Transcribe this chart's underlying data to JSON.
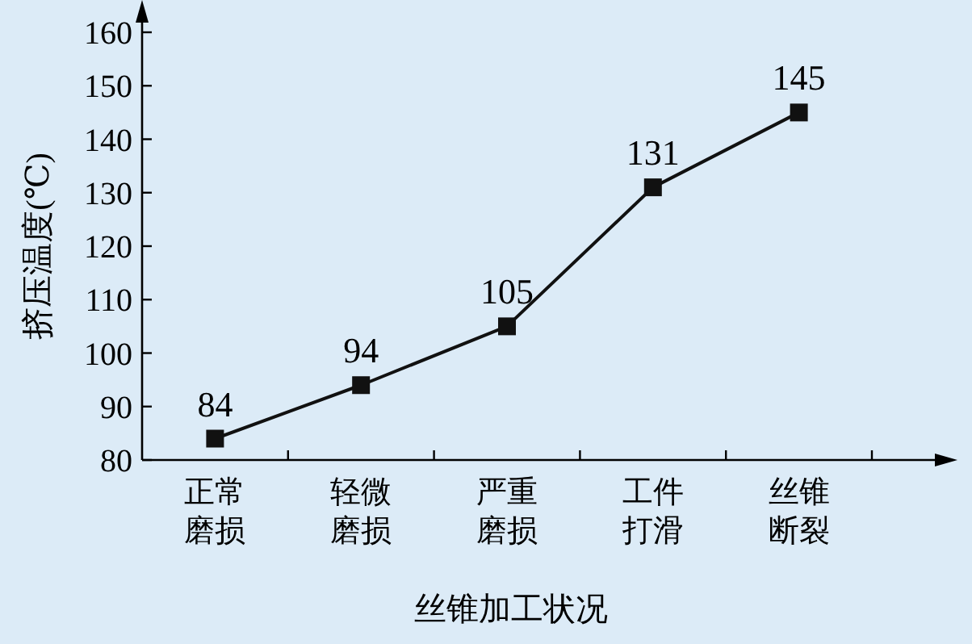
{
  "chart_data": {
    "type": "line",
    "xlabel": "丝锥加工状况",
    "ylabel": "挤压温度(℃)",
    "categories": [
      "正常磨损",
      "轻微磨损",
      "严重磨损",
      "工件打滑",
      "丝锥断裂"
    ],
    "series": [
      {
        "color": "#111111",
        "values": [
          84,
          94,
          105,
          131,
          145
        ]
      }
    ],
    "ylim": [
      80,
      160
    ],
    "yticks": [
      80,
      90,
      100,
      110,
      120,
      130,
      140,
      150,
      160
    ],
    "marker": "square",
    "data_labels": true
  }
}
